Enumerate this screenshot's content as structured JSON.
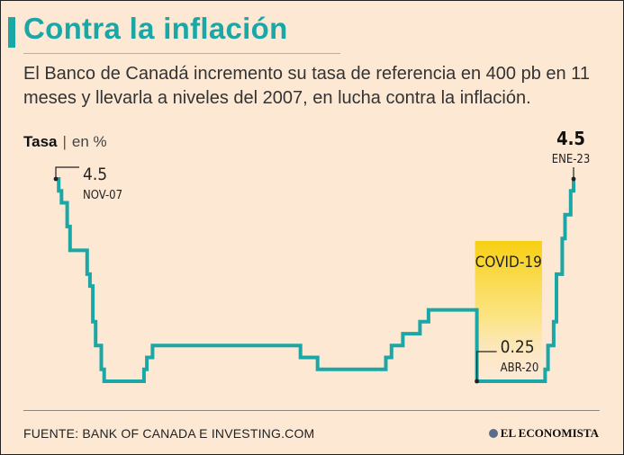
{
  "title": "Contra la inflación",
  "subtitle": "El Banco de Canadá incremento su tasa de referencia en 400 pb en 11 meses y llevarla a niveles del 2007, en lucha contra la inflación.",
  "y_label": {
    "bold": "Tasa",
    "separator": "|",
    "unit": "en %"
  },
  "source": "FUENTE: BANK OF CANADA E INVESTING.COM",
  "brand": "EL ECONOMISTA",
  "colors": {
    "line": "#1aa7a6",
    "background": "#fde8d4",
    "title": "#1aa7a6",
    "highlight": "#f5d417"
  },
  "chart_data": {
    "type": "line",
    "ylim": [
      0,
      4.75
    ],
    "x_range": [
      "2007-11",
      "2023-01"
    ],
    "series": [
      {
        "values": [
          {
            "x": "2007-11",
            "y": 4.5
          },
          {
            "x": "2007-12",
            "y": 4.25
          },
          {
            "x": "2008-01",
            "y": 4.0
          },
          {
            "x": "2008-03",
            "y": 3.5
          },
          {
            "x": "2008-04",
            "y": 3.0
          },
          {
            "x": "2008-10",
            "y": 2.5
          },
          {
            "x": "2008-11",
            "y": 2.25
          },
          {
            "x": "2008-12",
            "y": 1.5
          },
          {
            "x": "2009-01",
            "y": 1.0
          },
          {
            "x": "2009-03",
            "y": 0.5
          },
          {
            "x": "2009-04",
            "y": 0.25
          },
          {
            "x": "2010-06",
            "y": 0.5
          },
          {
            "x": "2010-07",
            "y": 0.75
          },
          {
            "x": "2010-09",
            "y": 1.0
          },
          {
            "x": "2015-01",
            "y": 0.75
          },
          {
            "x": "2015-07",
            "y": 0.5
          },
          {
            "x": "2017-07",
            "y": 0.75
          },
          {
            "x": "2017-09",
            "y": 1.0
          },
          {
            "x": "2018-01",
            "y": 1.25
          },
          {
            "x": "2018-07",
            "y": 1.5
          },
          {
            "x": "2018-10",
            "y": 1.75
          },
          {
            "x": "2020-03",
            "y": 0.25
          },
          {
            "x": "2022-03",
            "y": 0.5
          },
          {
            "x": "2022-04",
            "y": 1.0
          },
          {
            "x": "2022-06",
            "y": 1.5
          },
          {
            "x": "2022-07",
            "y": 2.5
          },
          {
            "x": "2022-09",
            "y": 3.25
          },
          {
            "x": "2022-10",
            "y": 3.75
          },
          {
            "x": "2022-12",
            "y": 4.25
          },
          {
            "x": "2023-01",
            "y": 4.5
          }
        ]
      }
    ],
    "annotations": [
      {
        "value": "4.5",
        "label": "NOV-07"
      },
      {
        "value": "0.25",
        "label": "ABR-20"
      },
      {
        "value": "4.5",
        "label": "ENE-23"
      }
    ],
    "highlight": {
      "label": "COVID-19",
      "start": "2020-03",
      "end": "2021-12"
    },
    "grid": false
  }
}
